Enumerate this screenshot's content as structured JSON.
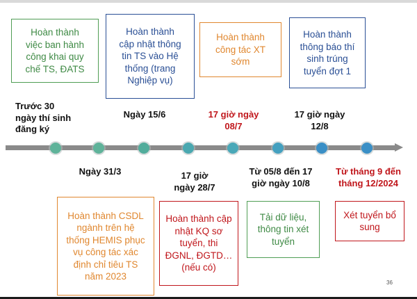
{
  "colors": {
    "green": "#4f9d54",
    "blue": "#2a4f95",
    "orange": "#e0872f",
    "red": "#c0161b",
    "dot_green": "#5fb39a",
    "dot_teal": "#4aa8b8",
    "dot_blue": "#3a8fc6",
    "axis": "#8a8a8a"
  },
  "boxes": {
    "b1": "Hoàn thành\nviệc ban hành\ncông khai  quy\nchế TS, ĐATS",
    "b2": "Hoàn thành\ncập nhật thông\ntin TS vào Hệ\nthống (trang\nNghiệp vụ)",
    "b3": "Hoàn thành\ncông tác XT\nsớm",
    "b4": "Hoàn thành\nthông báo thí\nsinh trúng\ntuyển đợt 1",
    "b5": "Hoàn thành CSDL\nngành trên hệ\nthống HEMIS phục\nvụ công tác xác\nđịnh chỉ tiêu TS\nnăm 2023",
    "b6": "Hoàn thành cập\nnhật KQ sơ\ntuyển, thi\nĐGNL, ĐGTD…\n(nếu có)",
    "b7": "Tải dữ liệu,\nthông tin xét\ntuyển",
    "b8": "Xét tuyển bổ\nsung"
  },
  "labels": {
    "l1": "Trước 30\nngày thí sinh\nđăng ký",
    "l2": "Ngày 31/3",
    "l3": "Ngày 15/6",
    "l4": "17 giờ\nngày 28/7",
    "l5": "17 giờ ngày\n08/7",
    "l6": "Từ  05/8 đến 17\ngiờ ngày 10/8",
    "l7": "17 giờ  ngày\n12/8",
    "l8": "Từ tháng 9 đến\ntháng 12/2024"
  },
  "page_number": "36"
}
